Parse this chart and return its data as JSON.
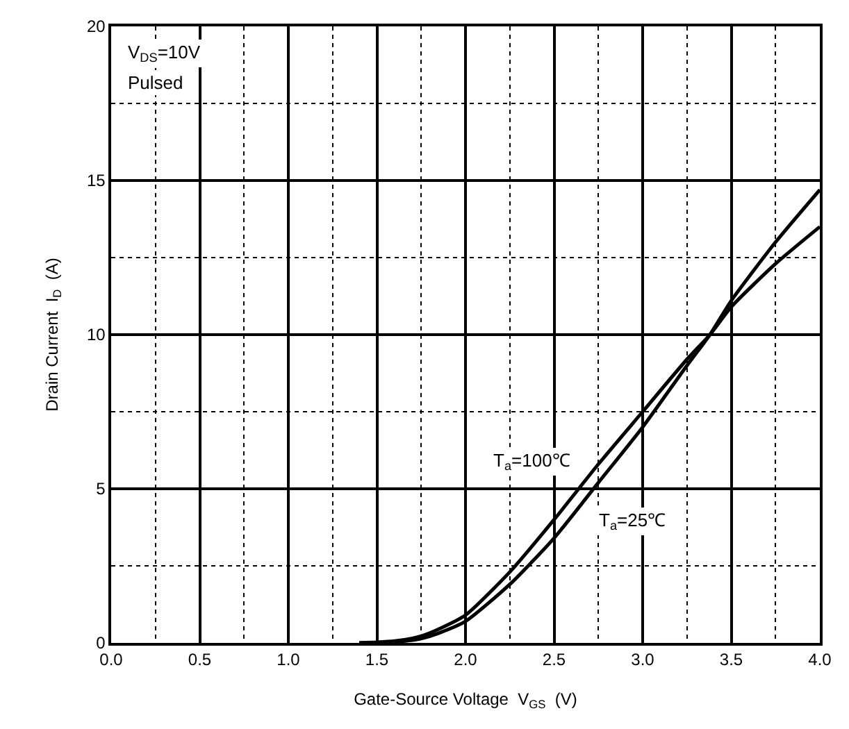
{
  "chart_data": {
    "type": "line",
    "xlabel": "Gate-Source Voltage  V$_{GS}$  (V)",
    "ylabel": "Drain Current  I$_{D}$  (A)",
    "xlim": [
      0,
      4
    ],
    "ylim": [
      0,
      20
    ],
    "xticks": [
      {
        "value": 0,
        "label": "0.0"
      },
      {
        "value": 0.5,
        "label": "0.5"
      },
      {
        "value": 1,
        "label": "1.0"
      },
      {
        "value": 1.5,
        "label": "1.5"
      },
      {
        "value": 2,
        "label": "2.0"
      },
      {
        "value": 2.5,
        "label": "2.5"
      },
      {
        "value": 3,
        "label": "3.0"
      },
      {
        "value": 3.5,
        "label": "3.5"
      },
      {
        "value": 4,
        "label": "4.0"
      }
    ],
    "yticks": [
      0,
      5,
      10,
      15,
      20
    ],
    "grid": true,
    "legend": false,
    "marker": "none",
    "line_style": "solid",
    "x": [
      1.4,
      1.5,
      1.6,
      1.7,
      1.75,
      1.85,
      2.0,
      2.25,
      2.5,
      2.75,
      3.0,
      3.25,
      3.38,
      3.5,
      3.75,
      4.0
    ],
    "series": [
      {
        "name": "T$_{a}$=100℃",
        "color": "#000000",
        "values": [
          0,
          0.02,
          0.06,
          0.15,
          0.22,
          0.45,
          0.9,
          2.3,
          4.0,
          5.8,
          7.5,
          9.2,
          10,
          10.9,
          12.3,
          13.5
        ]
      },
      {
        "name": "T$_{a}$=25℃",
        "color": "#000000",
        "values": [
          0,
          0.01,
          0.03,
          0.09,
          0.14,
          0.32,
          0.7,
          1.9,
          3.4,
          5.2,
          7.0,
          9.0,
          10,
          11.1,
          13.0,
          14.7
        ]
      }
    ],
    "annotations": [
      "V$_{DS}$=10V",
      "Pulsed"
    ]
  }
}
